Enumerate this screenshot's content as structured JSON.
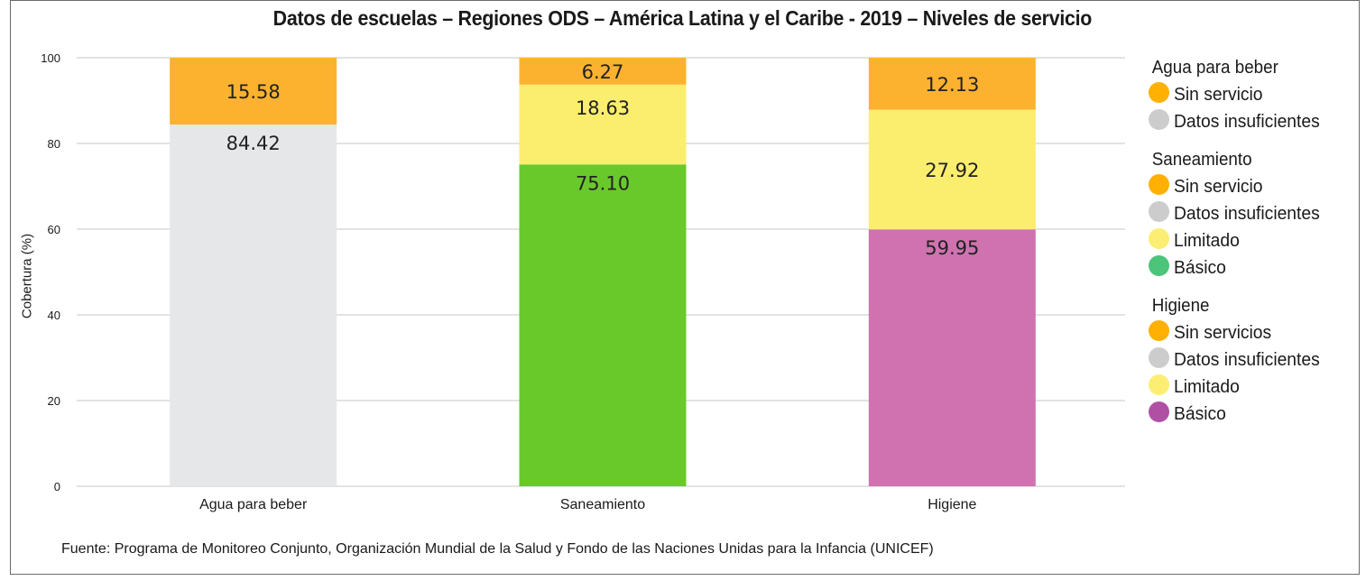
{
  "chart_data": {
    "type": "bar",
    "stacked": true,
    "title": "Datos de escuelas – Regiones ODS – América Latina y el Caribe - 2019 – Niveles de servicio",
    "xlabel": "",
    "ylabel": "Cobertura (%)",
    "ylim": [
      0,
      100
    ],
    "yticks": [
      0,
      20,
      40,
      60,
      80,
      100
    ],
    "grid": true,
    "categories": [
      "Agua para beber",
      "Saneamiento",
      "Higiene"
    ],
    "bars": [
      {
        "category": "Agua para beber",
        "segments": [
          {
            "name": "Datos insuficientes",
            "value": 84.42,
            "label": "84.42",
            "color": "#e6e7e8",
            "label_pos": "top"
          },
          {
            "name": "Sin servicio",
            "value": 15.58,
            "label": "15.58",
            "color": "#fdb22f",
            "label_pos": "center"
          }
        ]
      },
      {
        "category": "Saneamiento",
        "segments": [
          {
            "name": "Básico",
            "value": 75.1,
            "label": "75.10",
            "color": "#69c92b",
            "label_pos": "top"
          },
          {
            "name": "Limitado",
            "value": 18.63,
            "label": "18.63",
            "color": "#fbee6e",
            "label_pos": "upper"
          },
          {
            "name": "Sin servicio",
            "value": 6.27,
            "label": "6.27",
            "color": "#fdb22f",
            "label_pos": "center"
          }
        ]
      },
      {
        "category": "Higiene",
        "segments": [
          {
            "name": "Básico",
            "value": 59.95,
            "label": "59.95",
            "color": "#d072b0",
            "label_pos": "top"
          },
          {
            "name": "Limitado",
            "value": 27.92,
            "label": "27.92",
            "color": "#fbee6e",
            "label_pos": "center"
          },
          {
            "name": "Sin servicios",
            "value": 12.13,
            "label": "12.13",
            "color": "#fdb22f",
            "label_pos": "center"
          }
        ]
      }
    ],
    "legend": {
      "placement": "right",
      "groups": [
        {
          "title": "Agua para beber",
          "items": [
            {
              "label": "Sin servicio",
              "color": "#ffb000"
            },
            {
              "label": "Datos insuficientes",
              "color": "#cccccc"
            }
          ]
        },
        {
          "title": "Saneamiento",
          "items": [
            {
              "label": "Sin servicio",
              "color": "#ffb000"
            },
            {
              "label": "Datos insuficientes",
              "color": "#cccccc"
            },
            {
              "label": "Limitado",
              "color": "#fcee72"
            },
            {
              "label": "Básico",
              "color": "#4cc47a"
            }
          ]
        },
        {
          "title": "Higiene",
          "items": [
            {
              "label": "Sin servicios",
              "color": "#ffb000"
            },
            {
              "label": "Datos insuficientes",
              "color": "#cccccc"
            },
            {
              "label": "Limitado",
              "color": "#fcee72"
            },
            {
              "label": "Básico",
              "color": "#b050a4"
            }
          ]
        }
      ]
    },
    "source": "Fuente: Programa de Monitoreo Conjunto, Organización Mundial de la Salud y Fondo de las Naciones Unidas para la Infancia (UNICEF)"
  }
}
